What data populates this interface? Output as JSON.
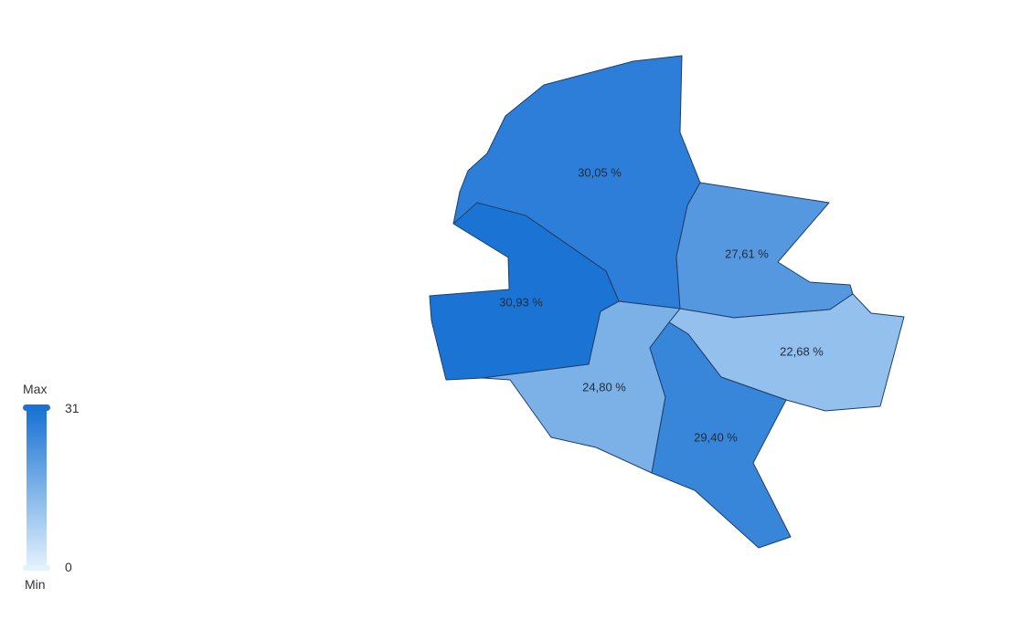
{
  "legend": {
    "max_label": "Max",
    "min_label": "Min",
    "max_value": "31",
    "min_value": "0",
    "max_num": 31,
    "min_num": 0,
    "color_high": "#1a73d4",
    "color_low": "#e3f2fd"
  },
  "chart_data": {
    "type": "choropleth",
    "scale": {
      "min": 0,
      "max": 31
    },
    "regions": [
      {
        "label": "30,05 %",
        "value": 30.05
      },
      {
        "label": "27,61 %",
        "value": 27.61
      },
      {
        "label": "30,93 %",
        "value": 30.93
      },
      {
        "label": "22,68 %",
        "value": 22.68
      },
      {
        "label": "24,80 %",
        "value": 24.8
      },
      {
        "label": "29,40 %",
        "value": 29.4
      }
    ]
  }
}
